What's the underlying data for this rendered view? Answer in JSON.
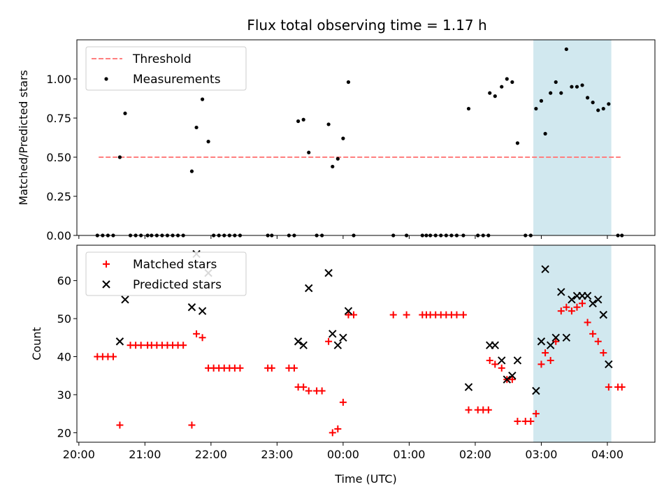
{
  "chart_data": [
    {
      "type": "scatter",
      "title": "Flux total observing time = 1.17 h",
      "xlabel": "",
      "ylabel": "Matched/Predicted stars",
      "x_unit": "hours since 20:00 UTC",
      "xlim": [
        19.97,
        28.72
      ],
      "ylim": [
        0.0,
        1.25
      ],
      "yticks": [
        0.0,
        0.25,
        0.5,
        0.75,
        1.0
      ],
      "ytick_labels": [
        "0.00",
        "0.25",
        "0.50",
        "0.75",
        "1.00"
      ],
      "grid": false,
      "legend_position": "top-left",
      "highlight_span": [
        26.88,
        28.06
      ],
      "highlight_color": "#d1e8ef",
      "threshold": {
        "name": "Threshold",
        "y": 0.5,
        "x_range": [
          20.3,
          28.2
        ],
        "color": "#ff7f7f"
      },
      "series": [
        {
          "name": "Measurements",
          "color": "#000000",
          "points": [
            [
              20.28,
              0.0
            ],
            [
              20.36,
              0.0
            ],
            [
              20.44,
              0.0
            ],
            [
              20.52,
              0.0
            ],
            [
              20.62,
              0.5
            ],
            [
              20.7,
              0.78
            ],
            [
              20.78,
              0.0
            ],
            [
              20.86,
              0.0
            ],
            [
              20.94,
              0.0
            ],
            [
              21.04,
              0.0
            ],
            [
              21.1,
              0.0
            ],
            [
              21.18,
              0.0
            ],
            [
              21.26,
              0.0
            ],
            [
              21.34,
              0.0
            ],
            [
              21.42,
              0.0
            ],
            [
              21.5,
              0.0
            ],
            [
              21.58,
              0.0
            ],
            [
              21.71,
              0.41
            ],
            [
              21.78,
              0.69
            ],
            [
              21.87,
              0.87
            ],
            [
              21.96,
              0.6
            ],
            [
              22.04,
              0.0
            ],
            [
              22.12,
              0.0
            ],
            [
              22.2,
              0.0
            ],
            [
              22.28,
              0.0
            ],
            [
              22.36,
              0.0
            ],
            [
              22.44,
              0.0
            ],
            [
              22.86,
              0.0
            ],
            [
              22.92,
              0.0
            ],
            [
              23.18,
              0.0
            ],
            [
              23.26,
              0.0
            ],
            [
              23.32,
              0.73
            ],
            [
              23.4,
              0.74
            ],
            [
              23.48,
              0.53
            ],
            [
              23.6,
              0.0
            ],
            [
              23.68,
              0.0
            ],
            [
              23.78,
              0.71
            ],
            [
              23.84,
              0.44
            ],
            [
              23.92,
              0.49
            ],
            [
              24.0,
              0.62
            ],
            [
              24.08,
              0.98
            ],
            [
              24.16,
              0.0
            ],
            [
              24.76,
              0.0
            ],
            [
              24.96,
              0.0
            ],
            [
              25.2,
              0.0
            ],
            [
              25.26,
              0.0
            ],
            [
              25.32,
              0.0
            ],
            [
              25.4,
              0.0
            ],
            [
              25.48,
              0.0
            ],
            [
              25.56,
              0.0
            ],
            [
              25.64,
              0.0
            ],
            [
              25.72,
              0.0
            ],
            [
              25.82,
              0.0
            ],
            [
              25.9,
              0.81
            ],
            [
              26.04,
              0.0
            ],
            [
              26.12,
              0.0
            ],
            [
              26.2,
              0.0
            ],
            [
              26.22,
              0.91
            ],
            [
              26.3,
              0.89
            ],
            [
              26.4,
              0.95
            ],
            [
              26.48,
              1.0
            ],
            [
              26.56,
              0.98
            ],
            [
              26.64,
              0.59
            ],
            [
              26.76,
              0.0
            ],
            [
              26.84,
              0.0
            ],
            [
              26.92,
              0.81
            ],
            [
              27.0,
              0.86
            ],
            [
              27.06,
              0.65
            ],
            [
              27.14,
              0.91
            ],
            [
              27.22,
              0.98
            ],
            [
              27.3,
              0.91
            ],
            [
              27.38,
              1.19
            ],
            [
              27.46,
              0.95
            ],
            [
              27.54,
              0.95
            ],
            [
              27.62,
              0.96
            ],
            [
              27.7,
              0.88
            ],
            [
              27.78,
              0.85
            ],
            [
              27.86,
              0.8
            ],
            [
              27.94,
              0.81
            ],
            [
              28.02,
              0.84
            ],
            [
              28.16,
              0.0
            ],
            [
              28.22,
              0.0
            ]
          ]
        }
      ]
    },
    {
      "type": "scatter",
      "title": "",
      "xlabel": "Time (UTC)",
      "ylabel": "Count",
      "x_unit": "hours since 20:00 UTC",
      "xlim": [
        19.97,
        28.72
      ],
      "ylim": [
        17.5,
        69.3
      ],
      "xticks": [
        20,
        21,
        22,
        23,
        24,
        25,
        26,
        27,
        28
      ],
      "xtick_labels": [
        "20:00",
        "21:00",
        "22:00",
        "23:00",
        "00:00",
        "01:00",
        "02:00",
        "03:00",
        "04:00"
      ],
      "yticks": [
        20,
        30,
        40,
        50,
        60
      ],
      "ytick_labels": [
        "20",
        "30",
        "40",
        "50",
        "60"
      ],
      "grid": false,
      "legend_position": "top-left",
      "highlight_span": [
        26.88,
        28.06
      ],
      "highlight_color": "#d1e8ef",
      "series": [
        {
          "name": "Matched stars",
          "marker": "plus",
          "color": "#ff0000",
          "points": [
            [
              20.28,
              40
            ],
            [
              20.36,
              40
            ],
            [
              20.44,
              40
            ],
            [
              20.52,
              40
            ],
            [
              20.62,
              22
            ],
            [
              20.78,
              43
            ],
            [
              20.86,
              43
            ],
            [
              20.94,
              43
            ],
            [
              21.04,
              43
            ],
            [
              21.1,
              43
            ],
            [
              21.18,
              43
            ],
            [
              21.26,
              43
            ],
            [
              21.34,
              43
            ],
            [
              21.42,
              43
            ],
            [
              21.5,
              43
            ],
            [
              21.58,
              43
            ],
            [
              21.71,
              22
            ],
            [
              21.78,
              46
            ],
            [
              21.87,
              45
            ],
            [
              21.96,
              37
            ],
            [
              22.04,
              37
            ],
            [
              22.12,
              37
            ],
            [
              22.2,
              37
            ],
            [
              22.28,
              37
            ],
            [
              22.36,
              37
            ],
            [
              22.44,
              37
            ],
            [
              22.86,
              37
            ],
            [
              22.92,
              37
            ],
            [
              23.18,
              37
            ],
            [
              23.26,
              37
            ],
            [
              23.32,
              32
            ],
            [
              23.4,
              32
            ],
            [
              23.48,
              31
            ],
            [
              23.6,
              31
            ],
            [
              23.68,
              31
            ],
            [
              23.78,
              44
            ],
            [
              23.84,
              20
            ],
            [
              23.92,
              21
            ],
            [
              24.0,
              28
            ],
            [
              24.08,
              51
            ],
            [
              24.16,
              51
            ],
            [
              24.76,
              51
            ],
            [
              24.96,
              51
            ],
            [
              25.2,
              51
            ],
            [
              25.26,
              51
            ],
            [
              25.32,
              51
            ],
            [
              25.4,
              51
            ],
            [
              25.48,
              51
            ],
            [
              25.56,
              51
            ],
            [
              25.64,
              51
            ],
            [
              25.72,
              51
            ],
            [
              25.82,
              51
            ],
            [
              25.9,
              26
            ],
            [
              26.04,
              26
            ],
            [
              26.12,
              26
            ],
            [
              26.2,
              26
            ],
            [
              26.22,
              39
            ],
            [
              26.3,
              38
            ],
            [
              26.4,
              37
            ],
            [
              26.48,
              34
            ],
            [
              26.56,
              34
            ],
            [
              26.64,
              23
            ],
            [
              26.76,
              23
            ],
            [
              26.84,
              23
            ],
            [
              26.92,
              25
            ],
            [
              27.0,
              38
            ],
            [
              27.06,
              41
            ],
            [
              27.14,
              39
            ],
            [
              27.22,
              44
            ],
            [
              27.3,
              52
            ],
            [
              27.38,
              53
            ],
            [
              27.46,
              52
            ],
            [
              27.54,
              53
            ],
            [
              27.62,
              54
            ],
            [
              27.7,
              49
            ],
            [
              27.78,
              46
            ],
            [
              27.86,
              44
            ],
            [
              27.94,
              41
            ],
            [
              28.02,
              32
            ],
            [
              28.16,
              32
            ],
            [
              28.22,
              32
            ]
          ]
        },
        {
          "name": "Predicted stars",
          "marker": "x",
          "color": "#000000",
          "points": [
            [
              20.62,
              44
            ],
            [
              20.7,
              55
            ],
            [
              21.71,
              53
            ],
            [
              21.78,
              67
            ],
            [
              21.87,
              52
            ],
            [
              21.96,
              62
            ],
            [
              23.32,
              44
            ],
            [
              23.4,
              43
            ],
            [
              23.48,
              58
            ],
            [
              23.78,
              62
            ],
            [
              23.84,
              46
            ],
            [
              23.92,
              43
            ],
            [
              24.0,
              45
            ],
            [
              24.08,
              52
            ],
            [
              25.9,
              32
            ],
            [
              26.22,
              43
            ],
            [
              26.3,
              43
            ],
            [
              26.4,
              39
            ],
            [
              26.48,
              34
            ],
            [
              26.56,
              35
            ],
            [
              26.64,
              39
            ],
            [
              26.92,
              31
            ],
            [
              27.0,
              44
            ],
            [
              27.06,
              63
            ],
            [
              27.14,
              43
            ],
            [
              27.22,
              45
            ],
            [
              27.3,
              57
            ],
            [
              27.38,
              45
            ],
            [
              27.46,
              55
            ],
            [
              27.54,
              56
            ],
            [
              27.62,
              56
            ],
            [
              27.7,
              56
            ],
            [
              27.78,
              54
            ],
            [
              27.86,
              55
            ],
            [
              27.94,
              51
            ],
            [
              28.02,
              38
            ]
          ]
        }
      ]
    }
  ]
}
